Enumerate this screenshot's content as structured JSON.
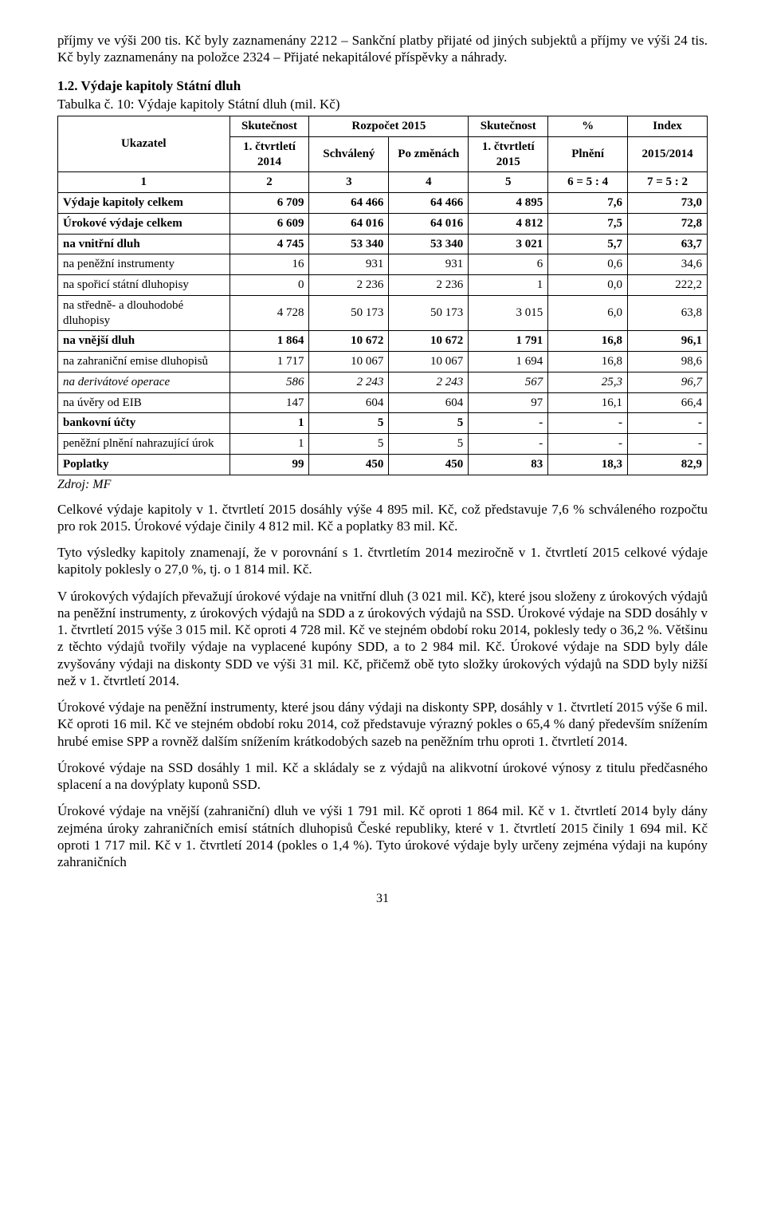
{
  "para_intro": "příjmy ve výši 200 tis. Kč byly zaznamenány 2212 – Sankční platby přijaté od jiných subjektů a příjmy ve výši 24 tis. Kč byly zaznamenány na položce 2324 – Přijaté nekapitálové příspěvky a náhrady.",
  "section_heading": "1.2. Výdaje kapitoly Státní dluh",
  "table_caption": "Tabulka č. 10: Výdaje kapitoly Státní dluh (mil. Kč)",
  "table": {
    "head": {
      "r1_c2": "Skutečnost",
      "r1_c3": "Rozpočet 2015",
      "r1_c4": "Skutečnost",
      "r1_c5": "%",
      "r1_c6": "Index",
      "r2_c1": "Ukazatel",
      "r2_c2": "1. čtvrtletí 2014",
      "r2_c3": "Schválený",
      "r2_c4": "Po změnách",
      "r2_c5": "1. čtvrtletí 2015",
      "r2_c6": "Plnění",
      "r2_c7": "2015/2014",
      "r3_c1": "1",
      "r3_c2": "2",
      "r3_c3": "3",
      "r3_c4": "4",
      "r3_c5": "5",
      "r3_c6": "6 = 5 : 4",
      "r3_c7": "7 = 5 : 2"
    },
    "rows": [
      {
        "label": "Výdaje kapitoly celkem",
        "c2": "6 709",
        "c3": "64 466",
        "c4": "64 466",
        "c5": "4 895",
        "c6": "7,6",
        "c7": "73,0",
        "bold": true,
        "italic": false
      },
      {
        "label": "Úrokové výdaje celkem",
        "c2": "6 609",
        "c3": "64 016",
        "c4": "64 016",
        "c5": "4 812",
        "c6": "7,5",
        "c7": "72,8",
        "bold": true,
        "italic": false
      },
      {
        "label": "na vnitřní dluh",
        "c2": "4 745",
        "c3": "53 340",
        "c4": "53 340",
        "c5": "3 021",
        "c6": "5,7",
        "c7": "63,7",
        "bold": true,
        "italic": false
      },
      {
        "label": "na peněžní instrumenty",
        "c2": "16",
        "c3": "931",
        "c4": "931",
        "c5": "6",
        "c6": "0,6",
        "c7": "34,6",
        "bold": false,
        "italic": false
      },
      {
        "label": "na spořicí státní dluhopisy",
        "c2": "0",
        "c3": "2 236",
        "c4": "2 236",
        "c5": "1",
        "c6": "0,0",
        "c7": "222,2",
        "bold": false,
        "italic": false
      },
      {
        "label": "na středně- a dlouhodobé dluhopisy",
        "c2": "4 728",
        "c3": "50 173",
        "c4": "50 173",
        "c5": "3 015",
        "c6": "6,0",
        "c7": "63,8",
        "bold": false,
        "italic": false
      },
      {
        "label": "na vnější dluh",
        "c2": "1 864",
        "c3": "10 672",
        "c4": "10 672",
        "c5": "1 791",
        "c6": "16,8",
        "c7": "96,1",
        "bold": true,
        "italic": false
      },
      {
        "label": "na zahraniční emise dluhopisů",
        "c2": "1 717",
        "c3": "10 067",
        "c4": "10 067",
        "c5": "1 694",
        "c6": "16,8",
        "c7": "98,6",
        "bold": false,
        "italic": false
      },
      {
        "label": "na derivátové operace",
        "c2": "586",
        "c3": "2 243",
        "c4": "2 243",
        "c5": "567",
        "c6": "25,3",
        "c7": "96,7",
        "bold": false,
        "italic": true
      },
      {
        "label": "na úvěry od EIB",
        "c2": "147",
        "c3": "604",
        "c4": "604",
        "c5": "97",
        "c6": "16,1",
        "c7": "66,4",
        "bold": false,
        "italic": false
      },
      {
        "label": "bankovní účty",
        "c2": "1",
        "c3": "5",
        "c4": "5",
        "c5": "-",
        "c6": "-",
        "c7": "-",
        "bold": true,
        "italic": false
      },
      {
        "label": "peněžní plnění nahrazující úrok",
        "c2": "1",
        "c3": "5",
        "c4": "5",
        "c5": "-",
        "c6": "-",
        "c7": "-",
        "bold": false,
        "italic": false
      },
      {
        "label": "Poplatky",
        "c2": "99",
        "c3": "450",
        "c4": "450",
        "c5": "83",
        "c6": "18,3",
        "c7": "82,9",
        "bold": true,
        "italic": false
      }
    ]
  },
  "table_source": "Zdroj: MF",
  "para1": "Celkové výdaje kapitoly v 1. čtvrtletí 2015 dosáhly výše 4 895 mil. Kč, což představuje 7,6 % schváleného rozpočtu pro rok 2015. Úrokové výdaje činily 4 812 mil. Kč a poplatky 83 mil. Kč.",
  "para2": "Tyto výsledky kapitoly znamenají, že v porovnání s 1. čtvrtletím 2014 meziročně v 1. čtvrtletí 2015 celkové výdaje kapitoly poklesly o 27,0 %, tj. o 1 814 mil. Kč.",
  "para3": "V úrokových výdajích převažují úrokové výdaje na vnitřní dluh (3 021 mil. Kč), které jsou složeny z úrokových výdajů na peněžní instrumenty, z úrokových výdajů na SDD a z úrokových výdajů na SSD. Úrokové výdaje na SDD dosáhly v 1. čtvrtletí 2015 výše 3 015 mil. Kč oproti 4 728 mil. Kč ve stejném období roku 2014, poklesly tedy o 36,2 %. Většinu z těchto výdajů tvořily výdaje na vyplacené kupóny SDD, a to 2 984 mil. Kč. Úrokové výdaje na SDD byly dále zvyšovány výdaji na diskonty SDD ve výši 31 mil. Kč, přičemž obě tyto složky úrokových výdajů na SDD byly nižší než v 1. čtvrtletí 2014.",
  "para4": "Úrokové výdaje na peněžní instrumenty, které jsou dány výdaji na diskonty SPP, dosáhly v 1. čtvrtletí 2015 výše 6 mil. Kč oproti 16 mil. Kč ve stejném období roku 2014, což představuje výrazný pokles o 65,4 % daný především snížením hrubé emise SPP a rovněž dalším snížením krátkodobých sazeb na peněžním trhu oproti 1. čtvrtletí 2014.",
  "para5": "Úrokové výdaje na SSD dosáhly 1 mil. Kč a skládaly se z výdajů na alikvotní úrokové výnosy z titulu předčasného splacení a na dovýplaty kuponů SSD.",
  "para6": "Úrokové výdaje na vnější (zahraniční) dluh ve výši 1 791 mil. Kč oproti 1 864 mil. Kč v 1. čtvrtletí 2014 byly dány zejména úroky zahraničních emisí státních dluhopisů České republiky, které v 1. čtvrtletí 2015 činily 1 694 mil. Kč oproti 1 717 mil. Kč v 1. čtvrtletí 2014 (pokles o 1,4 %). Tyto úrokové výdaje byly určeny zejména výdaji na kupóny zahraničních",
  "page_number": "31"
}
